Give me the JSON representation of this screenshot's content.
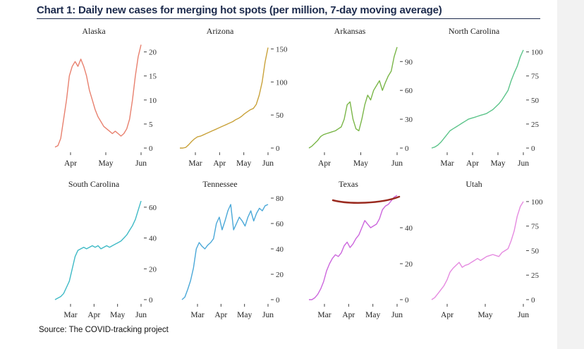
{
  "title": "Chart 1: Daily new cases for merging hot spots (per million, 7-day moving average)",
  "source": "Source: The COVID-tracking project",
  "annotation_color": "#9a2a1f",
  "chart_data": [
    {
      "type": "line",
      "title": "Alaska",
      "color": "#e8806e",
      "ylim": [
        0,
        22
      ],
      "yticks": [
        0,
        5,
        10,
        15,
        20
      ],
      "xticks": [
        "Apr",
        "May",
        "Jun"
      ],
      "series": [
        {
          "values": [
            0.2,
            0.5,
            2,
            6,
            10,
            15,
            17,
            18,
            17,
            18.5,
            17,
            15,
            12,
            10,
            8,
            6.5,
            5.5,
            4.5,
            4,
            3.5,
            3,
            3.5,
            3,
            2.5,
            3,
            4,
            6,
            10,
            15,
            19,
            21.5
          ]
        }
      ]
    },
    {
      "type": "line",
      "title": "Arizona",
      "color": "#c9a23a",
      "ylim": [
        0,
        160
      ],
      "yticks": [
        0,
        50,
        100,
        150
      ],
      "xticks": [
        "Mar",
        "Apr",
        "May",
        "Jun"
      ],
      "series": [
        {
          "values": [
            0,
            0,
            1,
            5,
            10,
            14,
            17,
            18,
            20,
            22,
            24,
            26,
            28,
            30,
            32,
            34,
            36,
            38,
            40,
            43,
            45,
            48,
            52,
            55,
            58,
            60,
            66,
            80,
            100,
            130,
            152
          ]
        }
      ]
    },
    {
      "type": "line",
      "title": "Arkansas",
      "color": "#7ab648",
      "ylim": [
        0,
        110
      ],
      "yticks": [
        0,
        30,
        60,
        90
      ],
      "xticks": [
        "Apr",
        "May",
        "Jun"
      ],
      "series": [
        {
          "values": [
            0,
            2,
            5,
            8,
            12,
            14,
            15,
            16,
            17,
            18,
            20,
            22,
            30,
            45,
            48,
            30,
            20,
            18,
            30,
            45,
            55,
            50,
            60,
            65,
            70,
            60,
            68,
            75,
            80,
            95,
            105
          ]
        }
      ]
    },
    {
      "type": "line",
      "title": "North Carolina",
      "color": "#5cc48a",
      "ylim": [
        0,
        110
      ],
      "yticks": [
        0,
        25,
        50,
        75,
        100
      ],
      "xticks": [
        "Mar",
        "Apr",
        "May",
        "Jun"
      ],
      "series": [
        {
          "values": [
            0,
            1,
            3,
            6,
            10,
            14,
            18,
            20,
            22,
            24,
            26,
            28,
            30,
            31,
            32,
            33,
            34,
            35,
            36,
            38,
            40,
            43,
            46,
            50,
            55,
            60,
            70,
            78,
            85,
            95,
            102
          ]
        }
      ]
    },
    {
      "type": "line",
      "title": "South Carolina",
      "color": "#3fbac6",
      "ylim": [
        0,
        70
      ],
      "yticks": [
        0,
        20,
        40,
        60
      ],
      "xticks": [
        "Mar",
        "Apr",
        "May",
        "Jun"
      ],
      "series": [
        {
          "values": [
            0,
            1,
            2,
            4,
            8,
            12,
            20,
            28,
            32,
            33,
            34,
            33,
            34,
            35,
            34,
            35,
            33,
            34,
            35,
            34,
            35,
            36,
            37,
            38,
            40,
            42,
            45,
            48,
            52,
            58,
            64
          ]
        }
      ]
    },
    {
      "type": "line",
      "title": "Tennessee",
      "color": "#4aa8d8",
      "ylim": [
        0,
        85
      ],
      "yticks": [
        0,
        20,
        40,
        60,
        80
      ],
      "xticks": [
        "Mar",
        "Apr",
        "May",
        "Jun"
      ],
      "series": [
        {
          "values": [
            0,
            2,
            8,
            15,
            25,
            40,
            45,
            42,
            40,
            43,
            45,
            48,
            60,
            65,
            55,
            62,
            70,
            75,
            55,
            60,
            65,
            62,
            58,
            65,
            70,
            62,
            68,
            72,
            70,
            74,
            75
          ]
        }
      ]
    },
    {
      "type": "line",
      "title": "Texas",
      "color": "#cc66dd",
      "ylim": [
        0,
        60
      ],
      "yticks": [
        0,
        20,
        40
      ],
      "xticks": [
        "Mar",
        "Apr",
        "May",
        "Jun"
      ],
      "series": [
        {
          "values": [
            0,
            0,
            1,
            3,
            6,
            10,
            16,
            20,
            23,
            25,
            24,
            26,
            30,
            32,
            29,
            31,
            34,
            36,
            40,
            44,
            42,
            40,
            41,
            42,
            45,
            50,
            52,
            53,
            55,
            57,
            58
          ]
        }
      ]
    },
    {
      "type": "line",
      "title": "Utah",
      "color": "#e58ae0",
      "ylim": [
        0,
        110
      ],
      "yticks": [
        0,
        25,
        50,
        75,
        100
      ],
      "xticks": [
        "Apr",
        "May",
        "Jun"
      ],
      "series": [
        {
          "values": [
            0,
            2,
            6,
            10,
            14,
            20,
            28,
            32,
            35,
            38,
            33,
            35,
            36,
            38,
            40,
            42,
            40,
            42,
            44,
            45,
            46,
            45,
            44,
            48,
            50,
            52,
            60,
            70,
            85,
            95,
            100
          ]
        }
      ]
    }
  ]
}
